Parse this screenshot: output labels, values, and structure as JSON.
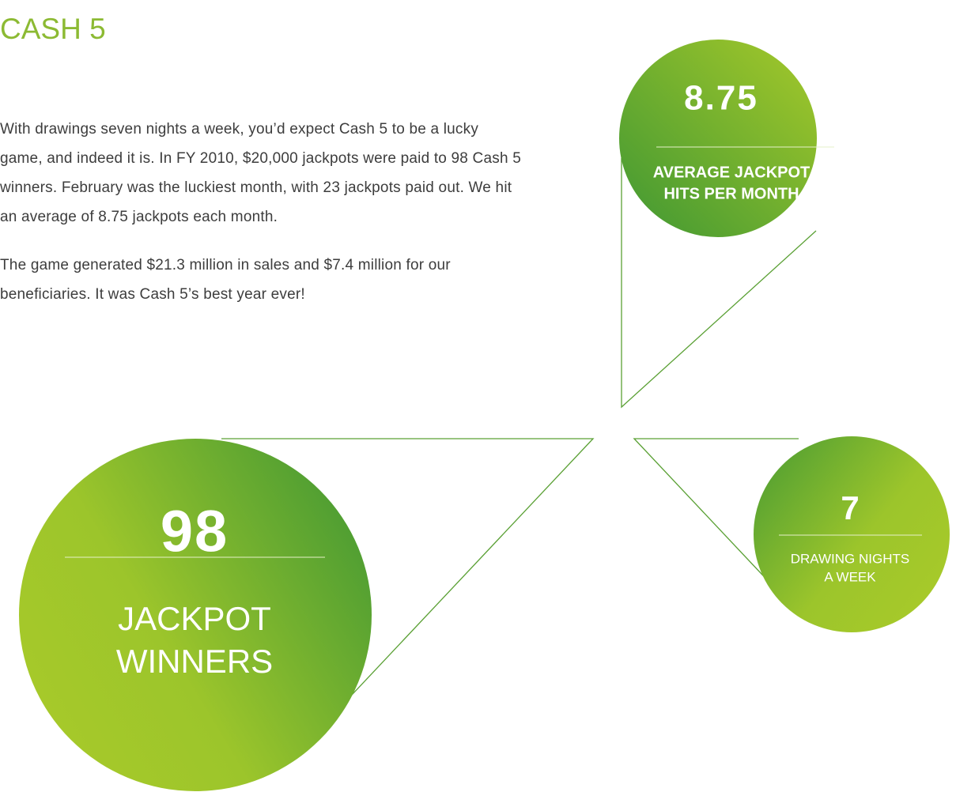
{
  "header": {
    "title": "CASH 5"
  },
  "paragraphs": [
    "With drawings seven nights a week, you’d expect Cash 5 to be a lucky game, and indeed it is. In FY 2010, $20,000 jackpots were paid to 98 Cash 5 winners. February was the luckiest month, with 23 jackpots paid out. We hit an average of 8.75 jackpots each month.",
    "The game generated $21.3 million in sales and $7.4 million for our beneficiaries. It was Cash 5’s best year ever!"
  ],
  "stats": [
    {
      "value": "8.75",
      "label": [
        "AVERAGE JACKPOT",
        "HITS PER MONTH"
      ]
    },
    {
      "value": "98",
      "label": [
        "JACKPOT",
        "WINNERS"
      ]
    },
    {
      "value": "7",
      "label": [
        "DRAWING NIGHTS",
        "A WEEK"
      ]
    }
  ]
}
